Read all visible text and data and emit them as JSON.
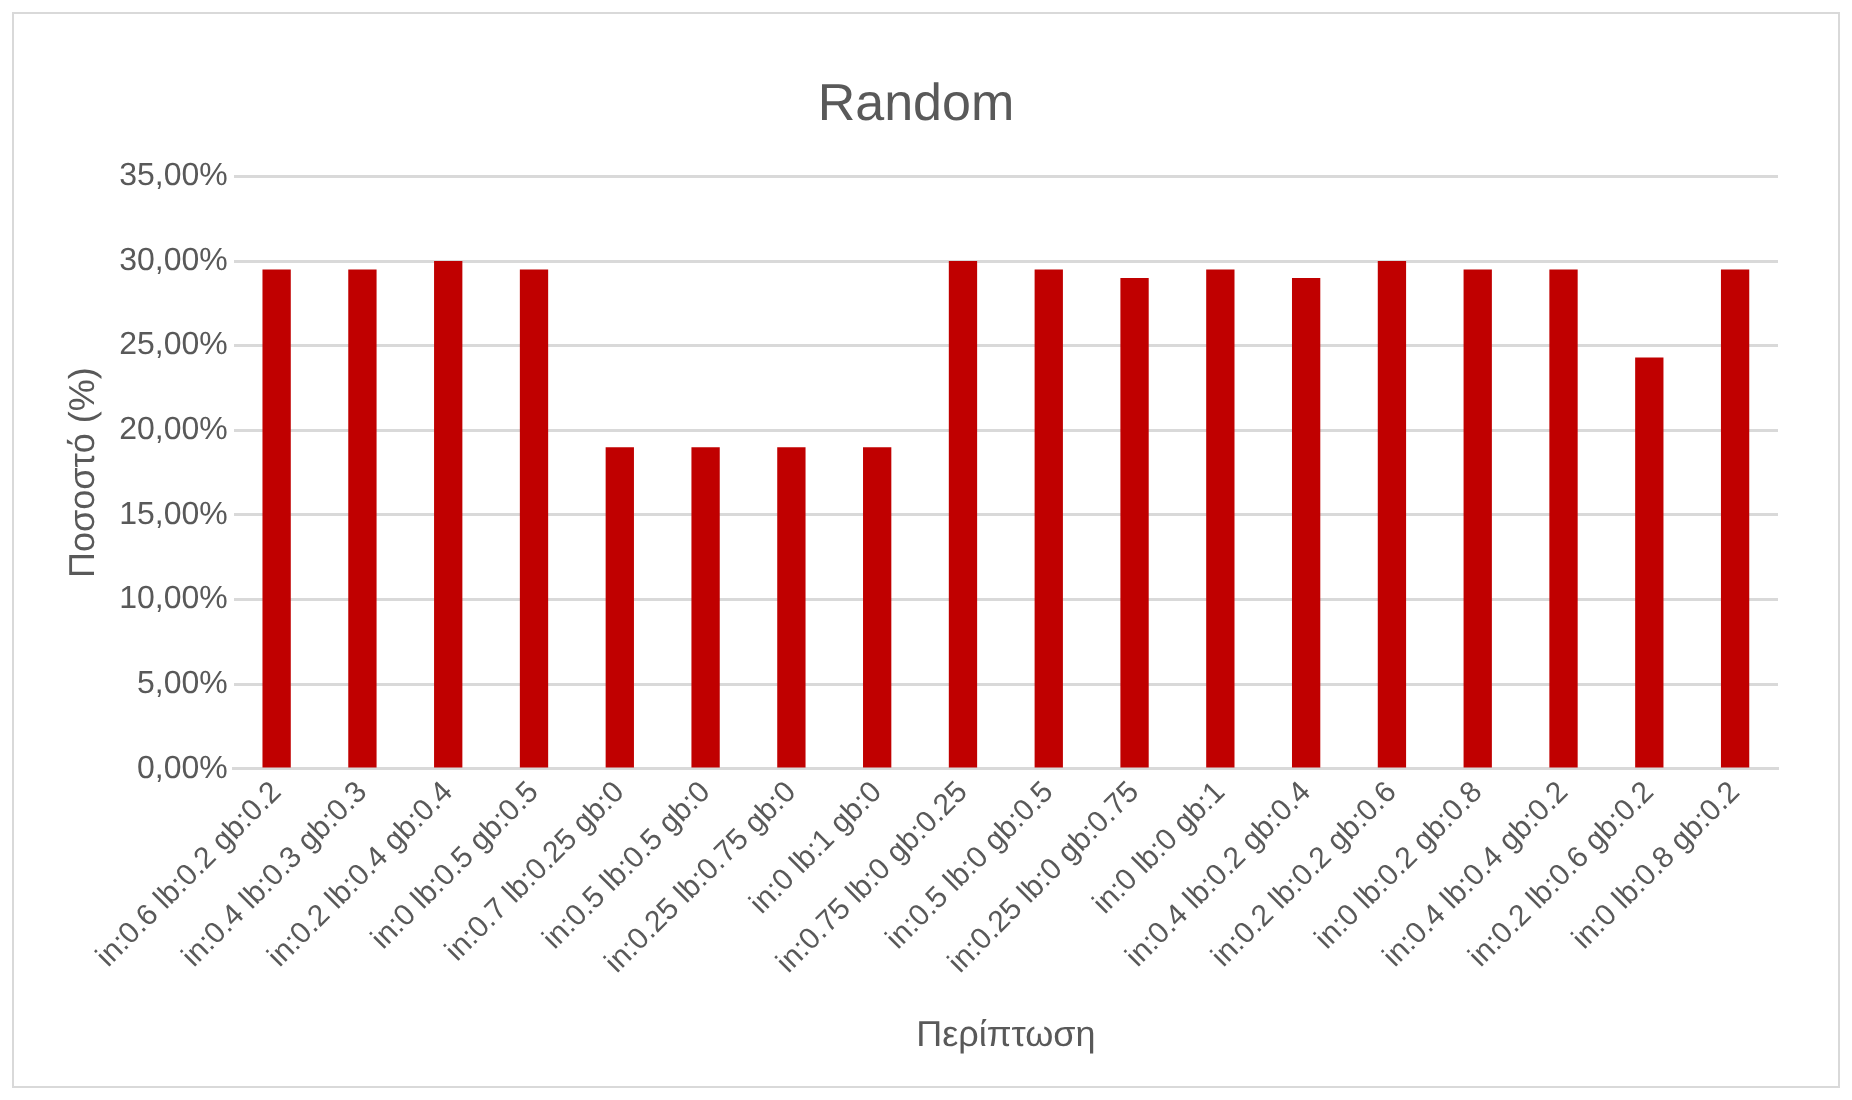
{
  "chart_data": {
    "type": "bar",
    "title": "Random",
    "xlabel": "Περίπτωση",
    "ylabel": "Ποσοστό (%)",
    "categories": [
      "in:0.6 lb:0.2 gb:0.2",
      "in:0.4 lb:0.3 gb:0.3",
      "in:0.2 lb:0.4 gb:0.4",
      "in:0 lb:0.5 gb:0.5",
      "in:0.7 lb:0.25 gb:0",
      "in:0.5 lb:0.5 gb:0",
      "in:0.25 lb:0.75 gb:0",
      "in:0 lb:1 gb:0",
      "in:0.75 lb:0 gb:0.25",
      "in:0.5 lb:0 gb:0.5",
      "in:0.25 lb:0 gb:0.75",
      "in:0 lb:0 gb:1",
      "in:0.4 lb:0.2 gb:0.4",
      "in:0.2 lb:0.2 gb:0.6",
      "in:0 lb:0.2 gb:0.8",
      "in:0.4 lb:0.4 gb:0.2",
      "in:0.2 lb:0.6 gb:0.2",
      "in:0 lb:0.8 gb:0.2"
    ],
    "values": [
      29.5,
      29.5,
      30,
      29.5,
      19,
      19,
      19,
      19,
      30,
      29.5,
      29,
      29.5,
      29,
      30,
      29.5,
      29.5,
      24.3,
      29.5
    ],
    "color": "#c00000",
    "ylim": [
      0,
      35
    ],
    "yticks": [
      {
        "value": 0,
        "label": "0,00%"
      },
      {
        "value": 5,
        "label": "5,00%"
      },
      {
        "value": 10,
        "label": "10,00%"
      },
      {
        "value": 15,
        "label": "15,00%"
      },
      {
        "value": 20,
        "label": "20,00%"
      },
      {
        "value": 25,
        "label": "25,00%"
      },
      {
        "value": 30,
        "label": "30,00%"
      },
      {
        "value": 35,
        "label": "35,00%"
      }
    ],
    "grid": "y",
    "legend": false
  }
}
